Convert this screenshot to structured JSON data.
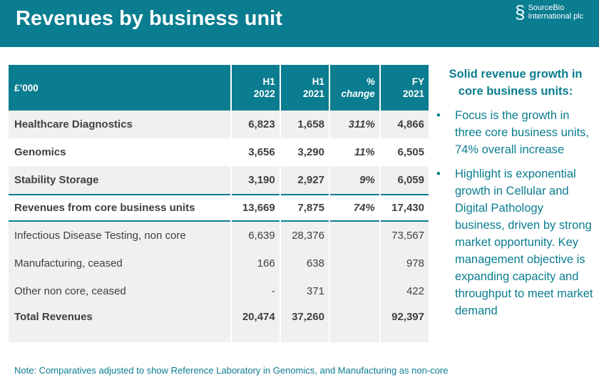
{
  "header": {
    "title": "Revenues by business unit",
    "logo_line1": "SourceBio",
    "logo_line2": "International plc"
  },
  "table": {
    "headers": [
      [
        "£’000",
        ""
      ],
      [
        "H1",
        "2022"
      ],
      [
        "H1",
        "2021"
      ],
      [
        "%",
        "change"
      ],
      [
        "FY",
        "2021"
      ]
    ],
    "rows": [
      {
        "label": "Healthcare Diagnostics",
        "h1_2022": "6,823",
        "h1_2021": "1,658",
        "change": "311%",
        "fy_2021": "4,866"
      },
      {
        "label": "Genomics",
        "h1_2022": "3,656",
        "h1_2021": "3,290",
        "change": "11%",
        "fy_2021": "6,505"
      },
      {
        "label": "Stability Storage",
        "h1_2022": "3,190",
        "h1_2021": "2,927",
        "change": "9%",
        "fy_2021": "6,059"
      },
      {
        "label": "Revenues from core business units",
        "h1_2022": "13,669",
        "h1_2021": "7,875",
        "change": "74%",
        "fy_2021": "17,430"
      },
      {
        "label": "Infectious Disease Testing, non core",
        "h1_2022": "6,639",
        "h1_2021": "28,376",
        "change": "",
        "fy_2021": "73,567"
      },
      {
        "label": "Manufacturing, ceased",
        "h1_2022": "166",
        "h1_2021": "638",
        "change": "",
        "fy_2021": "978"
      },
      {
        "label": "Other non core, ceased",
        "h1_2022": "-",
        "h1_2021": "371",
        "change": "",
        "fy_2021": "422"
      },
      {
        "label": "Total Revenues",
        "h1_2022": "20,474",
        "h1_2021": "37,260",
        "change": "",
        "fy_2021": "92,397"
      }
    ]
  },
  "side": {
    "heading": "Solid revenue growth in core business units:",
    "bullets": [
      "Focus is the growth in three core business units, 74% overall increase",
      "Highlight is exponential growth in Cellular and Digital Pathology business, driven by strong market opportunity. Key management objective is expanding capacity and throughput to meet market demand"
    ]
  },
  "note": "Note: Comparatives adjusted to show Reference Laboratory in Genomics, and  Manufacturing as non-core"
}
